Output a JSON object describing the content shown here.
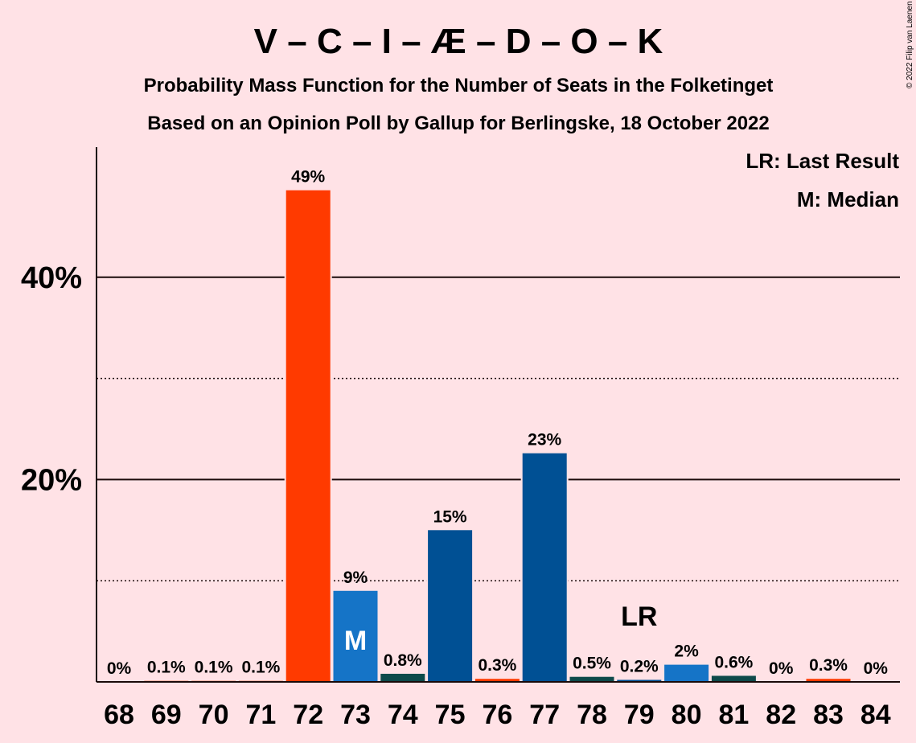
{
  "copyright": "© 2022 Filip van Laenen",
  "chart_data": {
    "type": "bar",
    "title": "V – C – I – Æ – D – O – K",
    "subtitle1": "Probability Mass Function for the Number of Seats in the Folketinget",
    "subtitle2": "Based on an Opinion Poll by Gallup for Berlingske, 18 October 2022",
    "legend": [
      "LR: Last Result",
      "M: Median"
    ],
    "categories": [
      "68",
      "69",
      "70",
      "71",
      "72",
      "73",
      "74",
      "75",
      "76",
      "77",
      "78",
      "79",
      "80",
      "81",
      "82",
      "83",
      "84"
    ],
    "values": [
      0,
      0.1,
      0.1,
      0.1,
      48.6,
      9.0,
      0.8,
      15.0,
      0.3,
      22.6,
      0.5,
      0.2,
      1.7,
      0.6,
      0,
      0.3,
      0
    ],
    "labels": [
      "0%",
      "0.1%",
      "0.1%",
      "0.1%",
      "49%",
      "9%",
      "0.8%",
      "15%",
      "0.3%",
      "23%",
      "0.5%",
      "0.2%",
      "2%",
      "0.6%",
      "0%",
      "0.3%",
      "0%"
    ],
    "colors": [
      "#ff3a00",
      "#ff3a00",
      "#ff3a00",
      "#ff3a00",
      "#ff3a00",
      "#1574c7",
      "#0e4a4a",
      "#005094",
      "#ff3a00",
      "#005094",
      "#0e4a4a",
      "#005094",
      "#1574c7",
      "#0e4a4a",
      "#ff3a00",
      "#ff3a00",
      "#ff3a00"
    ],
    "median_category": "73",
    "median_marker": "M",
    "last_result_category": "79",
    "last_result_marker": "LR",
    "ylim": [
      0,
      52
    ],
    "yticks": [
      20,
      40
    ],
    "ytick_labels": [
      "20%",
      "40%"
    ],
    "minor_gridlines": [
      10,
      30
    ],
    "grid": true,
    "legend_position": "top-right"
  }
}
